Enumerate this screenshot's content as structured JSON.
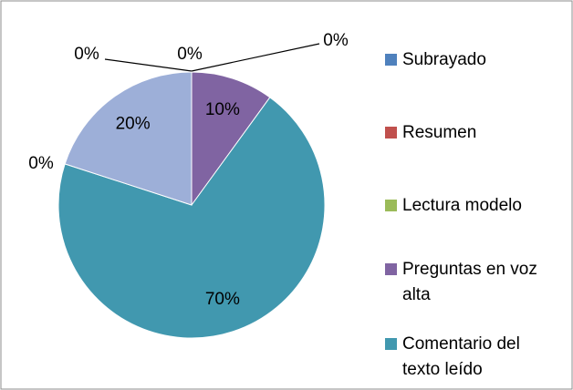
{
  "chart_data": {
    "type": "pie",
    "categories": [
      "Subrayado",
      "Resumen",
      "Lectura modelo",
      "Preguntas en voz alta",
      "Comentario del texto leído",
      null,
      null
    ],
    "values": [
      0,
      0,
      0,
      10,
      70,
      0,
      20
    ],
    "value_labels": [
      "0%",
      "0%",
      "0%",
      "10%",
      "70%",
      "0%",
      "20%"
    ],
    "colors": [
      "#4f81bd",
      "#c0504d",
      "#9bbb59",
      "#8064a2",
      "#4198af",
      "#f79646",
      "#9dafd8"
    ],
    "legend": "right"
  }
}
